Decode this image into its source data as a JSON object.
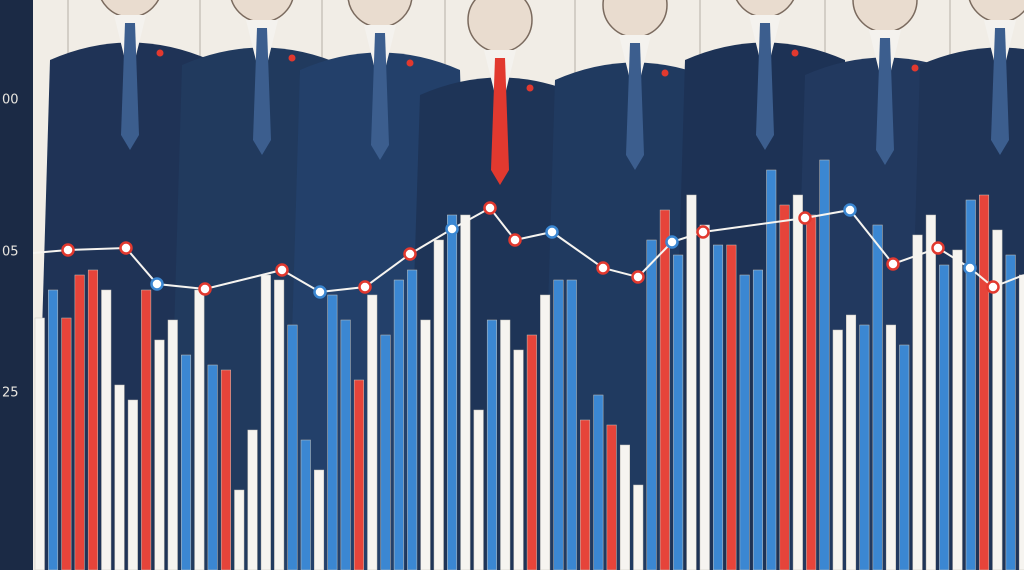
{
  "axis_labels": [
    "00",
    "05",
    "25"
  ]
}
